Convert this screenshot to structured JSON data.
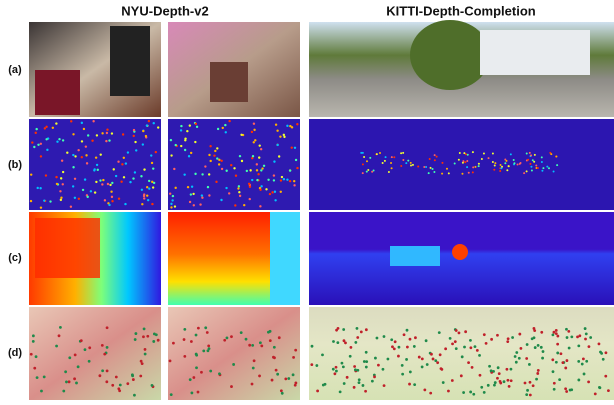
{
  "header": {
    "columns": [
      "NYU-Depth-v2",
      "KITTI-Depth-Completion"
    ]
  },
  "rows": [
    {
      "label": "(a)"
    },
    {
      "label": "(b)"
    },
    {
      "label": "(c)"
    },
    {
      "label": "(d)"
    }
  ]
}
